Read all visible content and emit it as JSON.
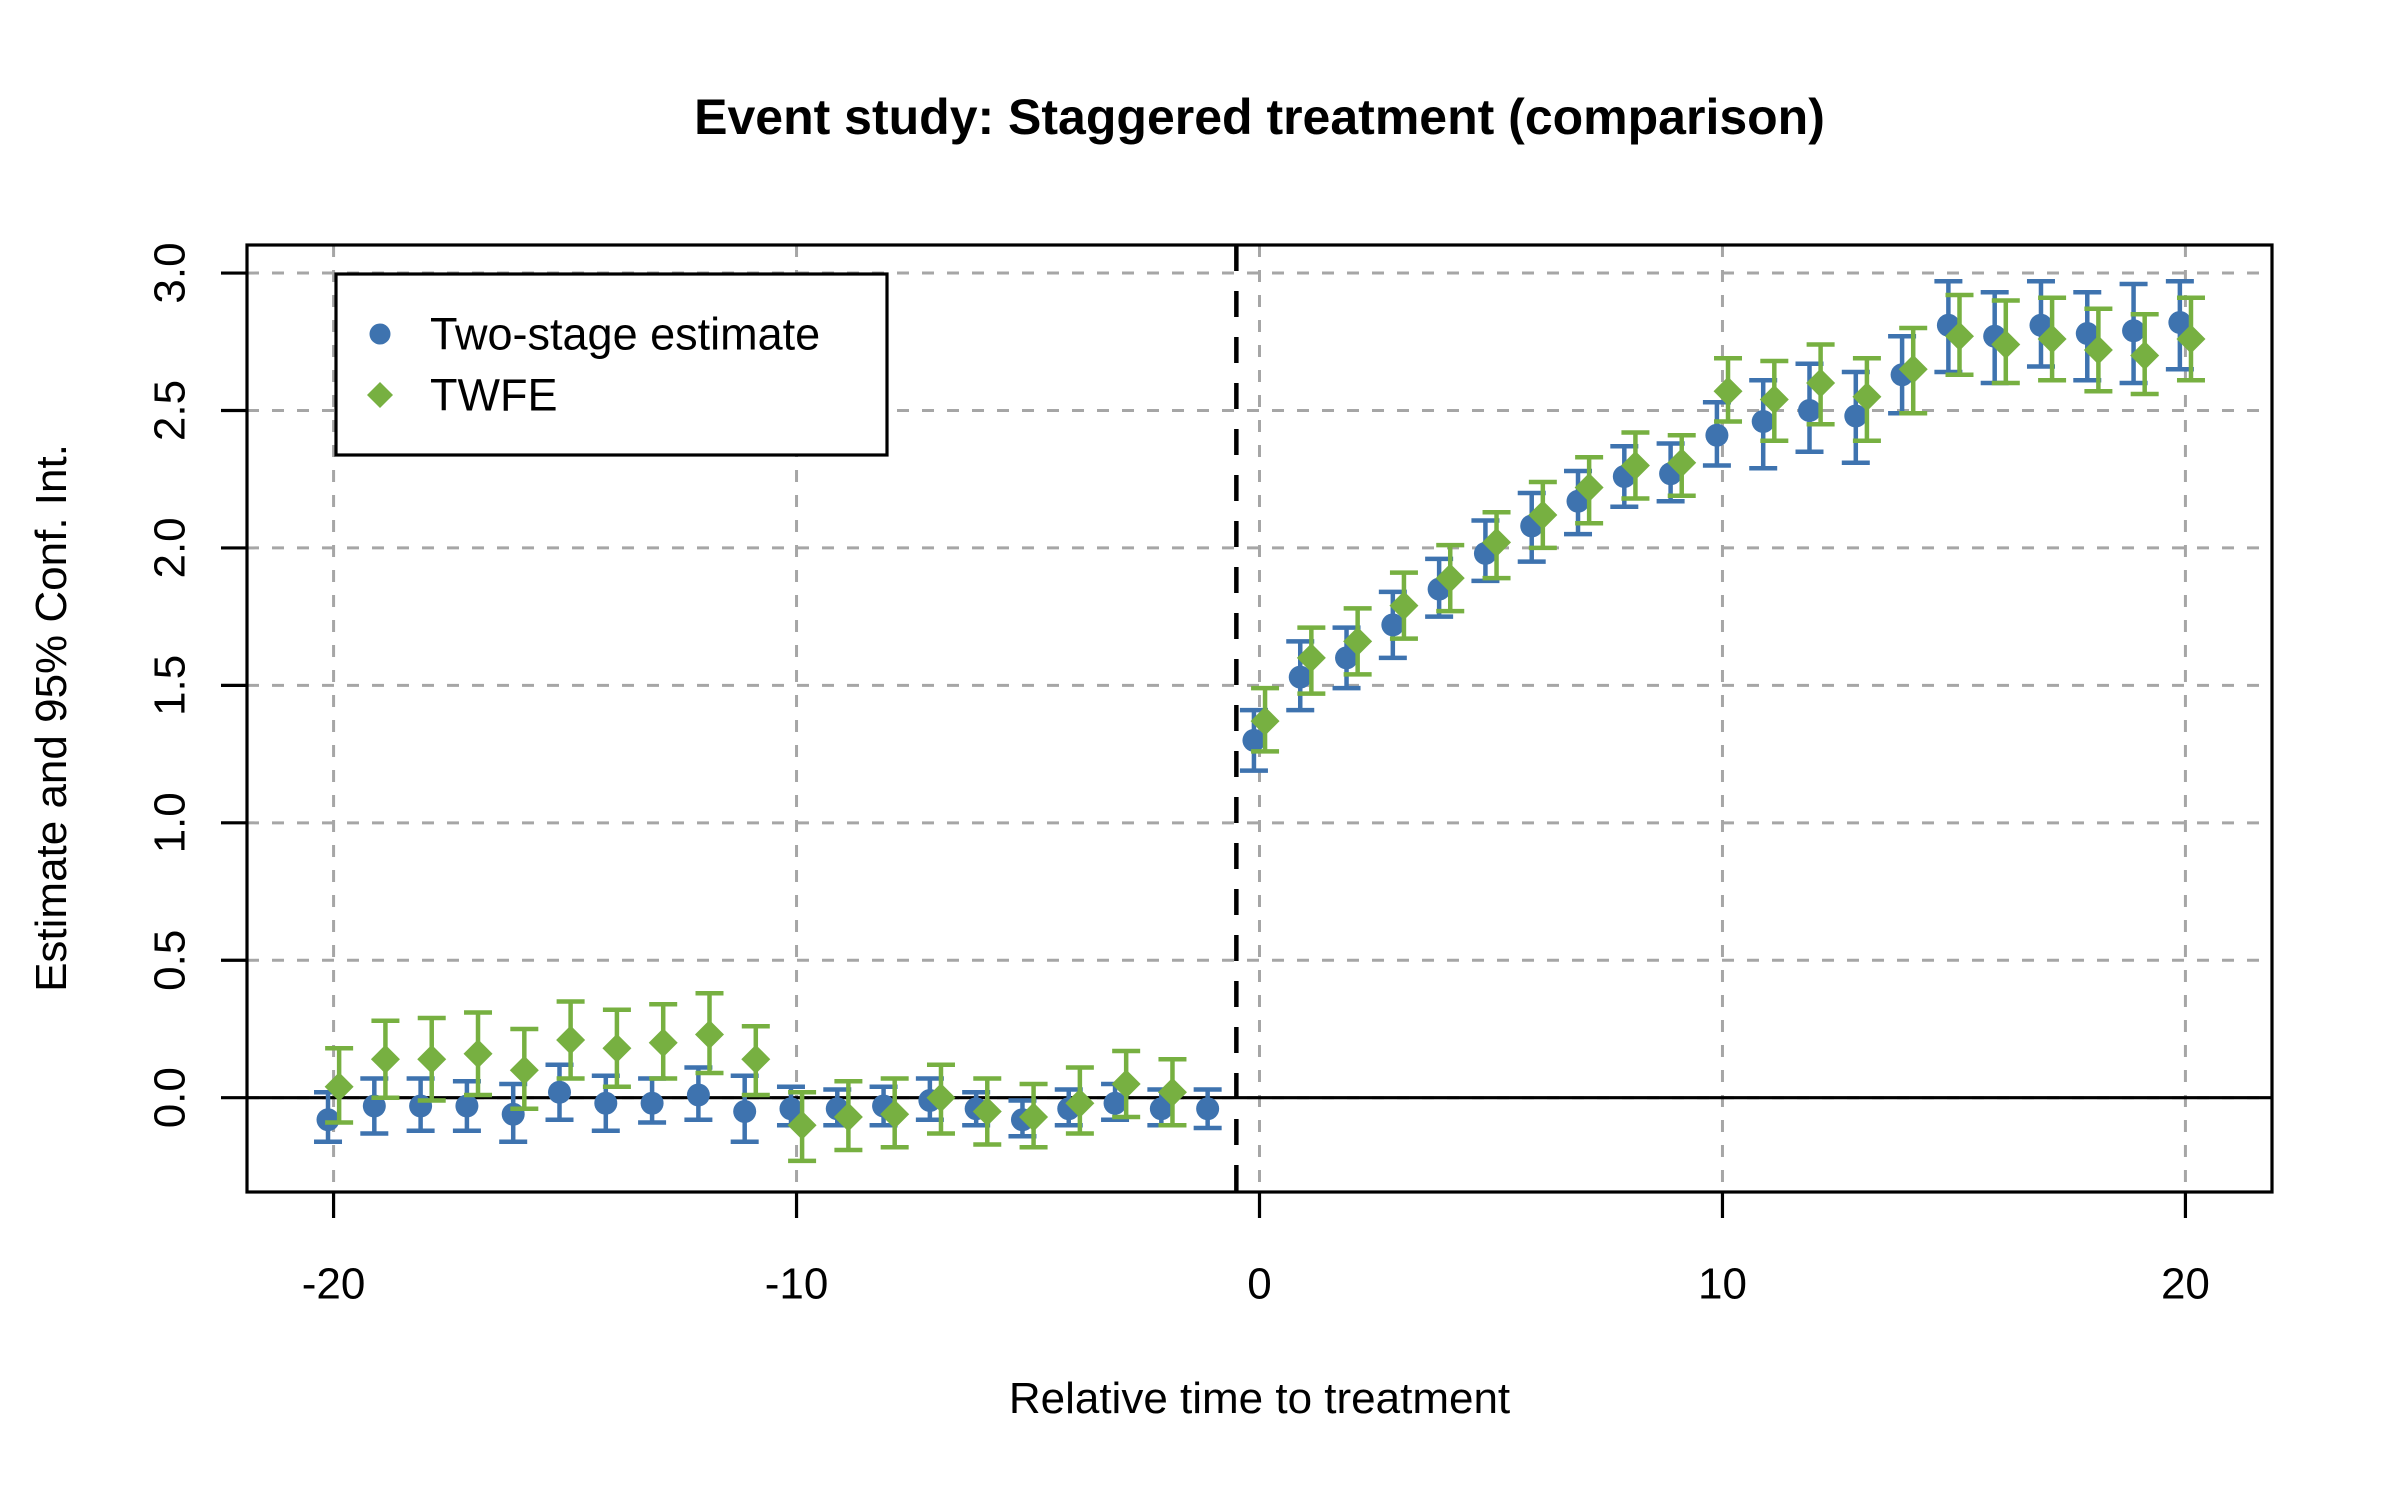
{
  "chart_data": {
    "type": "scatter",
    "subtype": "event-study-errorbar",
    "title": "Event study: Staggered treatment (comparison)",
    "xlabel": "Relative time to treatment",
    "ylabel": "Estimate and 95% Conf. Int.",
    "xlim": [
      -21.87,
      21.87
    ],
    "ylim": [
      -0.343,
      3.102
    ],
    "x_ticks": {
      "values": [
        -20,
        -10,
        0,
        10,
        20
      ],
      "labels": [
        "-20",
        "-10",
        "0",
        "10",
        "20"
      ]
    },
    "y_ticks": {
      "values": [
        0.0,
        0.5,
        1.0,
        1.5,
        2.0,
        2.5,
        3.0
      ],
      "labels": [
        "0.0",
        "0.5",
        "1.0",
        "1.5",
        "2.0",
        "2.5",
        "3.0"
      ]
    },
    "grid": {
      "on": true,
      "color": "#A6A6A6",
      "style": "dashed"
    },
    "reference_lines": {
      "zero_line_y": 0,
      "treatment_line_x": -0.5
    },
    "legend": {
      "position": "top-left",
      "items": [
        "Two-stage estimate",
        "TWFE"
      ]
    },
    "series": [
      {
        "name": "Two-stage estimate",
        "marker": "circle",
        "color": "#3E73AF",
        "points": [
          [
            -20,
            -0.08,
            -0.16,
            0.02
          ],
          [
            -19,
            -0.03,
            -0.13,
            0.07
          ],
          [
            -18,
            -0.03,
            -0.12,
            0.07
          ],
          [
            -17,
            -0.03,
            -0.12,
            0.06
          ],
          [
            -16,
            -0.06,
            -0.16,
            0.05
          ],
          [
            -15,
            0.02,
            -0.08,
            0.12
          ],
          [
            -14,
            -0.02,
            -0.12,
            0.08
          ],
          [
            -13,
            -0.02,
            -0.09,
            0.07
          ],
          [
            -12,
            0.01,
            -0.08,
            0.11
          ],
          [
            -11,
            -0.05,
            -0.16,
            0.08
          ],
          [
            -10,
            -0.04,
            -0.1,
            0.04
          ],
          [
            -9,
            -0.04,
            -0.1,
            0.03
          ],
          [
            -8,
            -0.03,
            -0.1,
            0.04
          ],
          [
            -7,
            -0.01,
            -0.08,
            0.07
          ],
          [
            -6,
            -0.04,
            -0.1,
            0.02
          ],
          [
            -5,
            -0.08,
            -0.14,
            -0.01
          ],
          [
            -4,
            -0.04,
            -0.1,
            0.03
          ],
          [
            -3,
            -0.02,
            -0.08,
            0.05
          ],
          [
            -2,
            -0.04,
            -0.1,
            0.03
          ],
          [
            -1,
            -0.04,
            -0.11,
            0.03
          ],
          [
            0,
            1.3,
            1.19,
            1.41
          ],
          [
            1,
            1.53,
            1.41,
            1.66
          ],
          [
            2,
            1.6,
            1.49,
            1.71
          ],
          [
            3,
            1.72,
            1.6,
            1.84
          ],
          [
            4,
            1.85,
            1.75,
            1.96
          ],
          [
            5,
            1.98,
            1.88,
            2.1
          ],
          [
            6,
            2.08,
            1.95,
            2.2
          ],
          [
            7,
            2.17,
            2.05,
            2.28
          ],
          [
            8,
            2.26,
            2.15,
            2.37
          ],
          [
            9,
            2.27,
            2.17,
            2.38
          ],
          [
            10,
            2.41,
            2.3,
            2.53
          ],
          [
            11,
            2.46,
            2.29,
            2.61
          ],
          [
            12,
            2.5,
            2.35,
            2.67
          ],
          [
            13,
            2.48,
            2.31,
            2.64
          ],
          [
            14,
            2.63,
            2.49,
            2.77
          ],
          [
            15,
            2.81,
            2.64,
            2.97
          ],
          [
            16,
            2.77,
            2.6,
            2.93
          ],
          [
            17,
            2.81,
            2.66,
            2.97
          ],
          [
            18,
            2.78,
            2.61,
            2.93
          ],
          [
            19,
            2.79,
            2.6,
            2.96
          ],
          [
            20,
            2.82,
            2.65,
            2.97
          ]
        ]
      },
      {
        "name": "TWFE",
        "marker": "diamond",
        "color": "#77B041",
        "points": [
          [
            -20,
            0.04,
            -0.09,
            0.18
          ],
          [
            -19,
            0.14,
            0.0,
            0.28
          ],
          [
            -18,
            0.14,
            -0.01,
            0.29
          ],
          [
            -17,
            0.16,
            0.01,
            0.31
          ],
          [
            -16,
            0.1,
            -0.04,
            0.25
          ],
          [
            -15,
            0.21,
            0.07,
            0.35
          ],
          [
            -14,
            0.18,
            0.04,
            0.32
          ],
          [
            -13,
            0.2,
            0.07,
            0.34
          ],
          [
            -12,
            0.23,
            0.09,
            0.38
          ],
          [
            -11,
            0.14,
            0.01,
            0.26
          ],
          [
            -10,
            -0.1,
            -0.23,
            0.02
          ],
          [
            -9,
            -0.07,
            -0.19,
            0.06
          ],
          [
            -8,
            -0.06,
            -0.18,
            0.07
          ],
          [
            -7,
            0.0,
            -0.13,
            0.12
          ],
          [
            -6,
            -0.05,
            -0.17,
            0.07
          ],
          [
            -5,
            -0.07,
            -0.18,
            0.05
          ],
          [
            -4,
            -0.02,
            -0.13,
            0.11
          ],
          [
            -3,
            0.05,
            -0.07,
            0.17
          ],
          [
            -2,
            0.02,
            -0.1,
            0.14
          ],
          [
            0,
            1.37,
            1.26,
            1.49
          ],
          [
            1,
            1.6,
            1.47,
            1.71
          ],
          [
            2,
            1.66,
            1.54,
            1.78
          ],
          [
            3,
            1.79,
            1.67,
            1.91
          ],
          [
            4,
            1.89,
            1.77,
            2.01
          ],
          [
            5,
            2.02,
            1.89,
            2.13
          ],
          [
            6,
            2.12,
            2.0,
            2.24
          ],
          [
            7,
            2.22,
            2.09,
            2.33
          ],
          [
            8,
            2.3,
            2.18,
            2.42
          ],
          [
            9,
            2.31,
            2.19,
            2.41
          ],
          [
            10,
            2.57,
            2.46,
            2.69
          ],
          [
            11,
            2.54,
            2.39,
            2.68
          ],
          [
            12,
            2.6,
            2.45,
            2.74
          ],
          [
            13,
            2.55,
            2.39,
            2.69
          ],
          [
            14,
            2.65,
            2.49,
            2.8
          ],
          [
            15,
            2.77,
            2.63,
            2.92
          ],
          [
            16,
            2.74,
            2.6,
            2.9
          ],
          [
            17,
            2.76,
            2.61,
            2.91
          ],
          [
            18,
            2.72,
            2.57,
            2.87
          ],
          [
            19,
            2.7,
            2.56,
            2.85
          ],
          [
            20,
            2.76,
            2.61,
            2.91
          ]
        ]
      }
    ]
  }
}
